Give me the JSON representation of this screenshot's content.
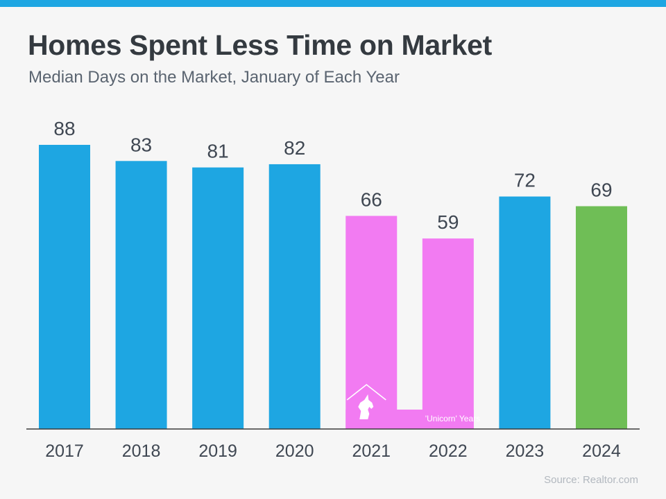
{
  "header": {
    "title": "Homes Spent Less Time on Market",
    "subtitle": "Median Days on the Market, January of Each Year"
  },
  "footer": {
    "source": "Source: Realtor.com"
  },
  "colors": {
    "accent_stripe": "#1ea6e2",
    "default_bar": "#1ea6e2",
    "unicorn_bar": "#f27bf2",
    "latest_bar": "#6fbe56",
    "value_label": "#3f4752",
    "tick_label": "#3f4752",
    "axis": "#3a3a3a",
    "unicorn_icon": "#ffffff"
  },
  "chart_data": {
    "type": "bar",
    "title": "Homes Spent Less Time on Market",
    "subtitle": "Median Days on the Market, January of Each Year",
    "xlabel": "",
    "ylabel": "",
    "categories": [
      "2017",
      "2018",
      "2019",
      "2020",
      "2021",
      "2022",
      "2023",
      "2024"
    ],
    "values": [
      88,
      83,
      81,
      82,
      66,
      59,
      72,
      69
    ],
    "bar_color_keys": [
      "default_bar",
      "default_bar",
      "default_bar",
      "default_bar",
      "unicorn_bar",
      "unicorn_bar",
      "default_bar",
      "latest_bar"
    ],
    "ylim": [
      0,
      90
    ],
    "grid": false,
    "annotations": [
      {
        "text": "'Unicorn' Years",
        "spans_categories": [
          "2021",
          "2022"
        ],
        "icon": "unicorn-house-icon"
      }
    ]
  }
}
